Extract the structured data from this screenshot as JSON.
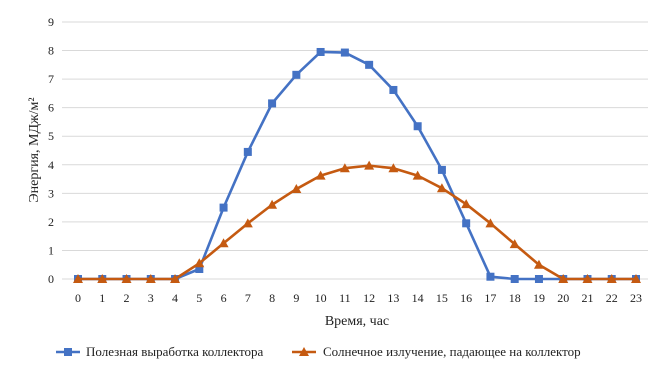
{
  "chart_data": {
    "type": "line",
    "xlabel": "Время, час",
    "ylabel": "Энергия, МДж/м²",
    "x": [
      0,
      1,
      2,
      3,
      4,
      5,
      6,
      7,
      8,
      9,
      10,
      11,
      12,
      13,
      14,
      15,
      16,
      17,
      18,
      19,
      20,
      21,
      22,
      23
    ],
    "ylim": [
      0,
      9
    ],
    "yticks": [
      0,
      1,
      2,
      3,
      4,
      5,
      6,
      7,
      8,
      9
    ],
    "grid": "horizontal",
    "legend_position": "bottom",
    "series": [
      {
        "name": "Полезная выработка коллектора",
        "color": "#4472c4",
        "marker": "square",
        "values": [
          0,
          0,
          0,
          0,
          0,
          0.35,
          2.5,
          4.45,
          6.15,
          7.15,
          7.95,
          7.93,
          7.5,
          6.62,
          5.35,
          3.82,
          1.95,
          0.08,
          0,
          0,
          0,
          0,
          0,
          0
        ]
      },
      {
        "name": "Солнечное излучение, падающее на коллектор",
        "color": "#c55a11",
        "marker": "triangle",
        "values": [
          0,
          0,
          0,
          0,
          0,
          0.55,
          1.25,
          1.95,
          2.6,
          3.15,
          3.62,
          3.88,
          3.97,
          3.88,
          3.62,
          3.18,
          2.62,
          1.95,
          1.22,
          0.5,
          0,
          0,
          0,
          0
        ]
      }
    ]
  }
}
